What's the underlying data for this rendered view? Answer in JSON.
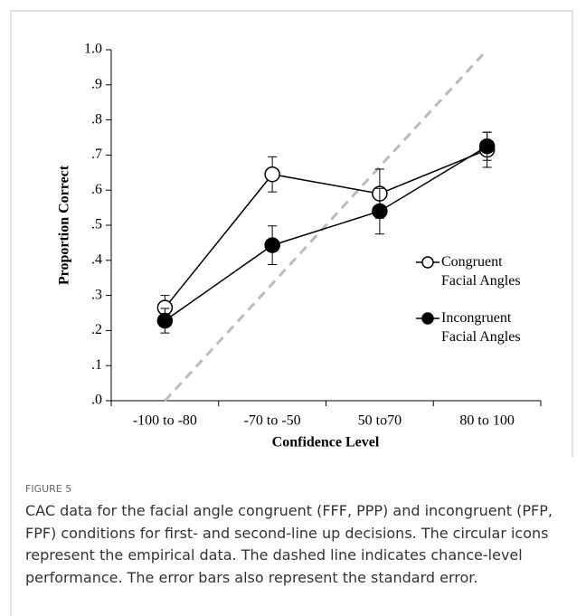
{
  "figure_label": "FIGURE 5",
  "caption": "CAC data for the facial angle congruent (FFF, PPP) and incongruent (PFP, FPF) conditions for first- and second-line up decisions. The circular icons represent the empirical data. The dashed line indicates chance-level performance. The error bars also represent the standard error.",
  "chart_data": {
    "type": "line",
    "x_label": "Confidence Level",
    "y_label": "Proportion Correct",
    "categories": [
      "-100 to -80",
      "-70 to -50",
      "50 to70",
      "80 to 100"
    ],
    "series": [
      {
        "name": "Congruent Facial Angles",
        "color": "#000000",
        "marker_fill": "#ffffff",
        "values": [
          0.265,
          0.645,
          0.59,
          0.715
        ],
        "errors": [
          0.035,
          0.05,
          0.07,
          0.05
        ]
      },
      {
        "name": "Incongruent Facial Angles",
        "color": "#000000",
        "marker_fill": "#000000",
        "values": [
          0.228,
          0.443,
          0.54,
          0.725
        ],
        "errors": [
          0.035,
          0.055,
          0.065,
          0.04
        ]
      }
    ],
    "reference_line": {
      "values": [
        0,
        0.3333,
        0.6667,
        1.0
      ],
      "color": "#bbbbbb",
      "dashed": true
    },
    "ylim": [
      0,
      1.0
    ],
    "yticks": [
      {
        "value": 0,
        "label": ".0"
      },
      {
        "value": 0.1,
        "label": ".1"
      },
      {
        "value": 0.2,
        "label": ".2"
      },
      {
        "value": 0.3,
        "label": ".3"
      },
      {
        "value": 0.4,
        "label": ".4"
      },
      {
        "value": 0.5,
        "label": ".5"
      },
      {
        "value": 0.6,
        "label": ".6"
      },
      {
        "value": 0.7,
        "label": ".7"
      },
      {
        "value": 0.8,
        "label": ".8"
      },
      {
        "value": 0.9,
        "label": ".9"
      },
      {
        "value": 1.0,
        "label": "1.0"
      }
    ],
    "legend": "right"
  }
}
